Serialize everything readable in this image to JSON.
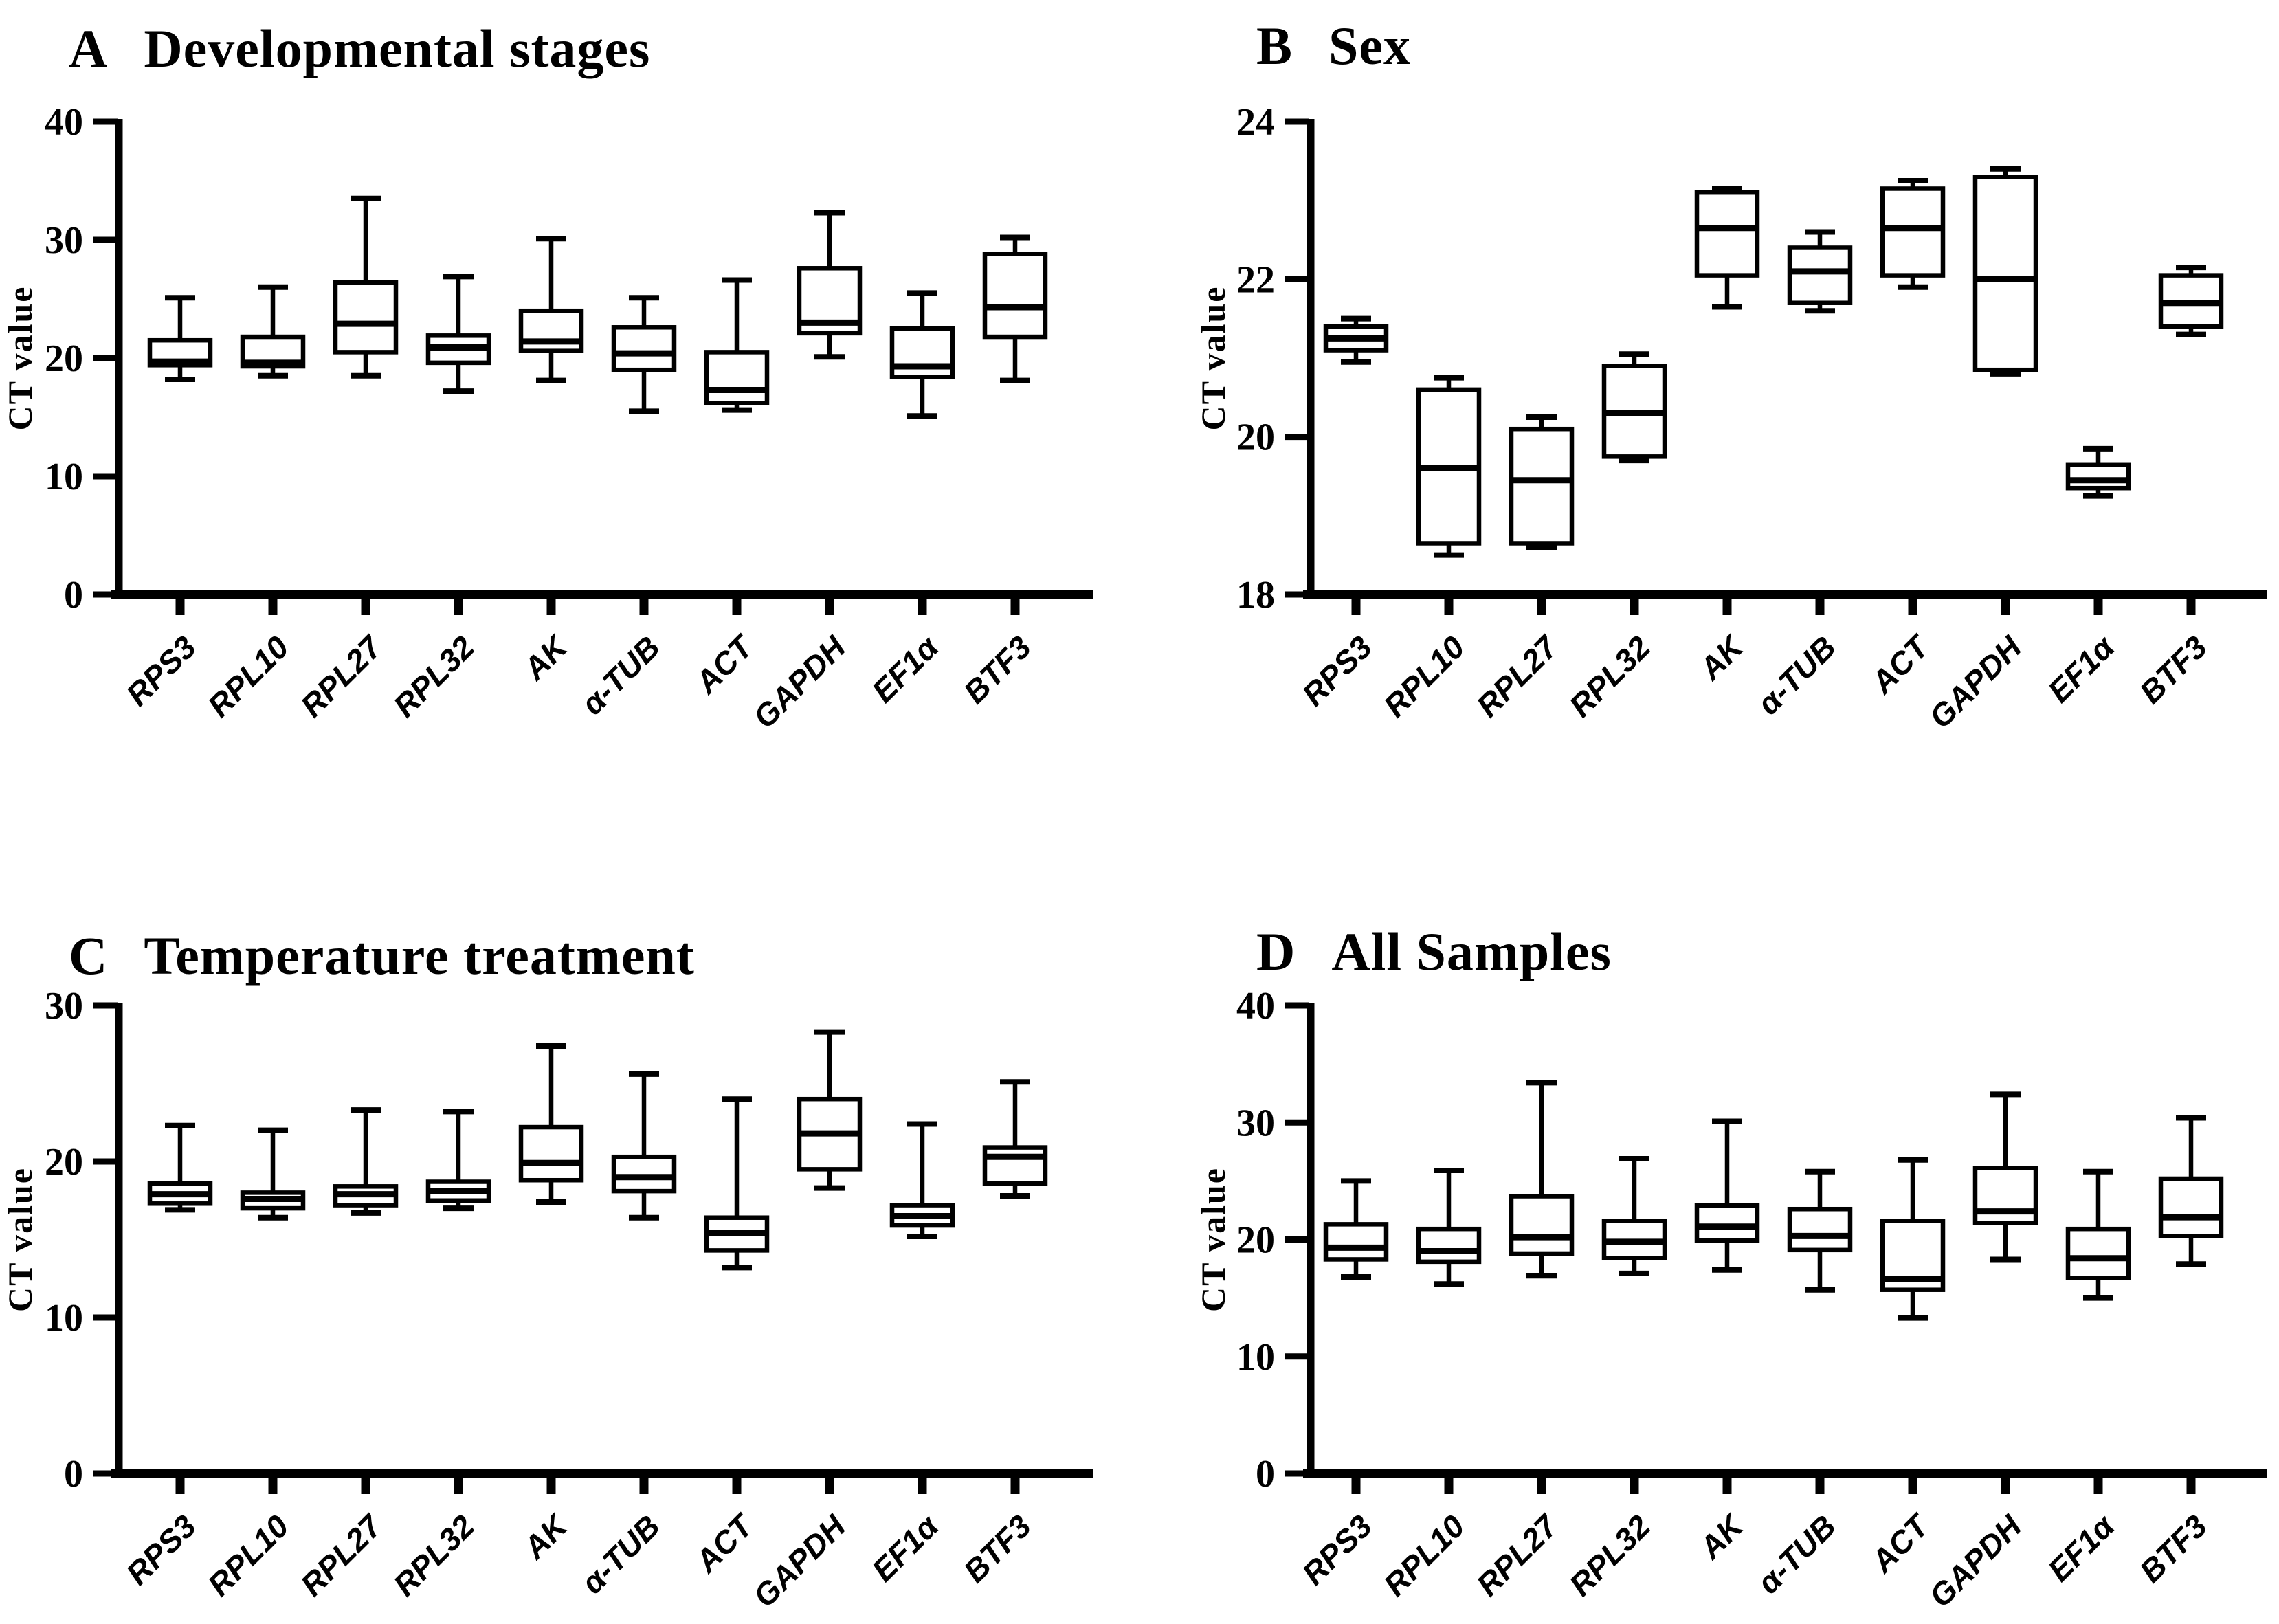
{
  "figure": {
    "background": "#ffffff",
    "ink_color": "#000000"
  },
  "chart_data": [
    {
      "type": "box",
      "panel_letter": "A",
      "title": "Developmental stages",
      "ylabel": "CT value",
      "ylim": [
        0,
        40
      ],
      "yticks": [
        0,
        10,
        20,
        30,
        40
      ],
      "grid": false,
      "legend": "none",
      "box_fill": "#ffffff",
      "box_stroke": "#000000",
      "categories": [
        "RPS3",
        "RPL10",
        "RPL27",
        "RPL32",
        "AK",
        "α-TUB",
        "ACT",
        "GAPDH",
        "EF1α",
        "BTF3"
      ],
      "boxes": [
        {
          "name": "RPS3",
          "min": 18.2,
          "q1": 19.4,
          "median": 19.7,
          "q3": 21.5,
          "max": 25.1
        },
        {
          "name": "RPL10",
          "min": 18.5,
          "q1": 19.3,
          "median": 19.6,
          "q3": 21.8,
          "max": 26.0
        },
        {
          "name": "RPL27",
          "min": 18.5,
          "q1": 20.5,
          "median": 22.9,
          "q3": 26.4,
          "max": 33.5
        },
        {
          "name": "RPL32",
          "min": 17.2,
          "q1": 19.6,
          "median": 20.9,
          "q3": 21.9,
          "max": 26.9
        },
        {
          "name": "AK",
          "min": 18.1,
          "q1": 20.6,
          "median": 21.4,
          "q3": 24.0,
          "max": 30.1
        },
        {
          "name": "α-TUB",
          "min": 15.5,
          "q1": 19.0,
          "median": 20.4,
          "q3": 22.6,
          "max": 25.1
        },
        {
          "name": "ACT",
          "min": 15.6,
          "q1": 16.2,
          "median": 17.3,
          "q3": 20.5,
          "max": 26.6
        },
        {
          "name": "GAPDH",
          "min": 20.1,
          "q1": 22.1,
          "median": 23.0,
          "q3": 27.6,
          "max": 32.3
        },
        {
          "name": "EF1α",
          "min": 15.1,
          "q1": 18.4,
          "median": 19.3,
          "q3": 22.5,
          "max": 25.5
        },
        {
          "name": "BTF3",
          "min": 18.1,
          "q1": 21.8,
          "median": 24.3,
          "q3": 28.8,
          "max": 30.2
        }
      ]
    },
    {
      "type": "box",
      "panel_letter": "B",
      "title": "Sex",
      "ylabel": "CT value",
      "ylim": [
        18,
        24
      ],
      "yticks": [
        18,
        20,
        22,
        24
      ],
      "grid": false,
      "legend": "none",
      "box_fill": "#ffffff",
      "box_stroke": "#000000",
      "categories": [
        "RPS3",
        "RPL10",
        "RPL27",
        "RPL32",
        "AK",
        "α-TUB",
        "ACT",
        "GAPDH",
        "EF1α",
        "BTF3"
      ],
      "boxes": [
        {
          "name": "RPS3",
          "min": 20.95,
          "q1": 21.1,
          "median": 21.25,
          "q3": 21.4,
          "max": 21.5
        },
        {
          "name": "RPL10",
          "min": 18.5,
          "q1": 18.65,
          "median": 19.6,
          "q3": 20.6,
          "max": 20.75
        },
        {
          "name": "RPL27",
          "min": 18.6,
          "q1": 18.65,
          "median": 19.45,
          "q3": 20.1,
          "max": 20.25
        },
        {
          "name": "RPL32",
          "min": 19.7,
          "q1": 19.75,
          "median": 20.3,
          "q3": 20.9,
          "max": 21.05
        },
        {
          "name": "AK",
          "min": 21.65,
          "q1": 22.05,
          "median": 22.65,
          "q3": 23.1,
          "max": 23.15
        },
        {
          "name": "α-TUB",
          "min": 21.6,
          "q1": 21.7,
          "median": 22.1,
          "q3": 22.4,
          "max": 22.6
        },
        {
          "name": "ACT",
          "min": 21.9,
          "q1": 22.05,
          "median": 22.65,
          "q3": 23.15,
          "max": 23.25
        },
        {
          "name": "GAPDH",
          "min": 20.8,
          "q1": 20.85,
          "median": 22.0,
          "q3": 23.3,
          "max": 23.4
        },
        {
          "name": "EF1α",
          "min": 19.25,
          "q1": 19.35,
          "median": 19.45,
          "q3": 19.65,
          "max": 19.85
        },
        {
          "name": "BTF3",
          "min": 21.3,
          "q1": 21.4,
          "median": 21.7,
          "q3": 22.05,
          "max": 22.15
        }
      ]
    },
    {
      "type": "box",
      "panel_letter": "C",
      "title": "Temperature treatment",
      "ylabel": "CT value",
      "ylim": [
        0,
        30
      ],
      "yticks": [
        0,
        10,
        20,
        30
      ],
      "grid": false,
      "legend": "none",
      "box_fill": "#ffffff",
      "box_stroke": "#000000",
      "categories": [
        "RPS3",
        "RPL10",
        "RPL27",
        "RPL32",
        "AK",
        "α-TUB",
        "ACT",
        "GAPDH",
        "EF1α",
        "BTF3"
      ],
      "boxes": [
        {
          "name": "RPS3",
          "min": 16.9,
          "q1": 17.3,
          "median": 17.9,
          "q3": 18.6,
          "max": 22.3
        },
        {
          "name": "RPL10",
          "min": 16.4,
          "q1": 17.0,
          "median": 17.6,
          "q3": 18.0,
          "max": 22.0
        },
        {
          "name": "RPL27",
          "min": 16.7,
          "q1": 17.2,
          "median": 17.9,
          "q3": 18.4,
          "max": 23.3
        },
        {
          "name": "RPL32",
          "min": 17.0,
          "q1": 17.5,
          "median": 18.1,
          "q3": 18.7,
          "max": 23.2
        },
        {
          "name": "AK",
          "min": 17.4,
          "q1": 18.8,
          "median": 19.9,
          "q3": 22.2,
          "max": 27.4
        },
        {
          "name": "α-TUB",
          "min": 16.4,
          "q1": 18.1,
          "median": 19.0,
          "q3": 20.3,
          "max": 25.6
        },
        {
          "name": "ACT",
          "min": 13.2,
          "q1": 14.3,
          "median": 15.4,
          "q3": 16.4,
          "max": 24.0
        },
        {
          "name": "GAPDH",
          "min": 18.3,
          "q1": 19.5,
          "median": 21.8,
          "q3": 24.0,
          "max": 28.3
        },
        {
          "name": "EF1α",
          "min": 15.2,
          "q1": 15.9,
          "median": 16.5,
          "q3": 17.2,
          "max": 22.4
        },
        {
          "name": "BTF3",
          "min": 17.8,
          "q1": 18.6,
          "median": 20.3,
          "q3": 20.9,
          "max": 25.1
        }
      ]
    },
    {
      "type": "box",
      "panel_letter": "D",
      "title": "All Samples",
      "ylabel": "CT value",
      "ylim": [
        0,
        40
      ],
      "yticks": [
        0,
        10,
        20,
        30,
        40
      ],
      "grid": false,
      "legend": "none",
      "box_fill": "#ffffff",
      "box_stroke": "#000000",
      "categories": [
        "RPS3",
        "RPL10",
        "RPL27",
        "RPL32",
        "AK",
        "α-TUB",
        "ACT",
        "GAPDH",
        "EF1α",
        "BTF3"
      ],
      "boxes": [
        {
          "name": "RPS3",
          "min": 16.8,
          "q1": 18.3,
          "median": 19.3,
          "q3": 21.3,
          "max": 25.0
        },
        {
          "name": "RPL10",
          "min": 16.2,
          "q1": 18.1,
          "median": 19.0,
          "q3": 20.9,
          "max": 25.9
        },
        {
          "name": "RPL27",
          "min": 16.9,
          "q1": 18.8,
          "median": 20.2,
          "q3": 23.7,
          "max": 33.4
        },
        {
          "name": "RPL32",
          "min": 17.1,
          "q1": 18.4,
          "median": 19.8,
          "q3": 21.6,
          "max": 26.9
        },
        {
          "name": "AK",
          "min": 17.4,
          "q1": 19.9,
          "median": 21.1,
          "q3": 22.9,
          "max": 30.1
        },
        {
          "name": "α-TUB",
          "min": 15.7,
          "q1": 19.1,
          "median": 20.3,
          "q3": 22.6,
          "max": 25.8
        },
        {
          "name": "ACT",
          "min": 13.3,
          "q1": 15.7,
          "median": 16.6,
          "q3": 21.6,
          "max": 26.8
        },
        {
          "name": "GAPDH",
          "min": 18.3,
          "q1": 21.4,
          "median": 22.4,
          "q3": 26.1,
          "max": 32.4
        },
        {
          "name": "EF1α",
          "min": 15.0,
          "q1": 16.7,
          "median": 18.4,
          "q3": 20.9,
          "max": 25.8
        },
        {
          "name": "BTF3",
          "min": 17.9,
          "q1": 20.3,
          "median": 21.9,
          "q3": 25.2,
          "max": 30.4
        }
      ]
    }
  ]
}
